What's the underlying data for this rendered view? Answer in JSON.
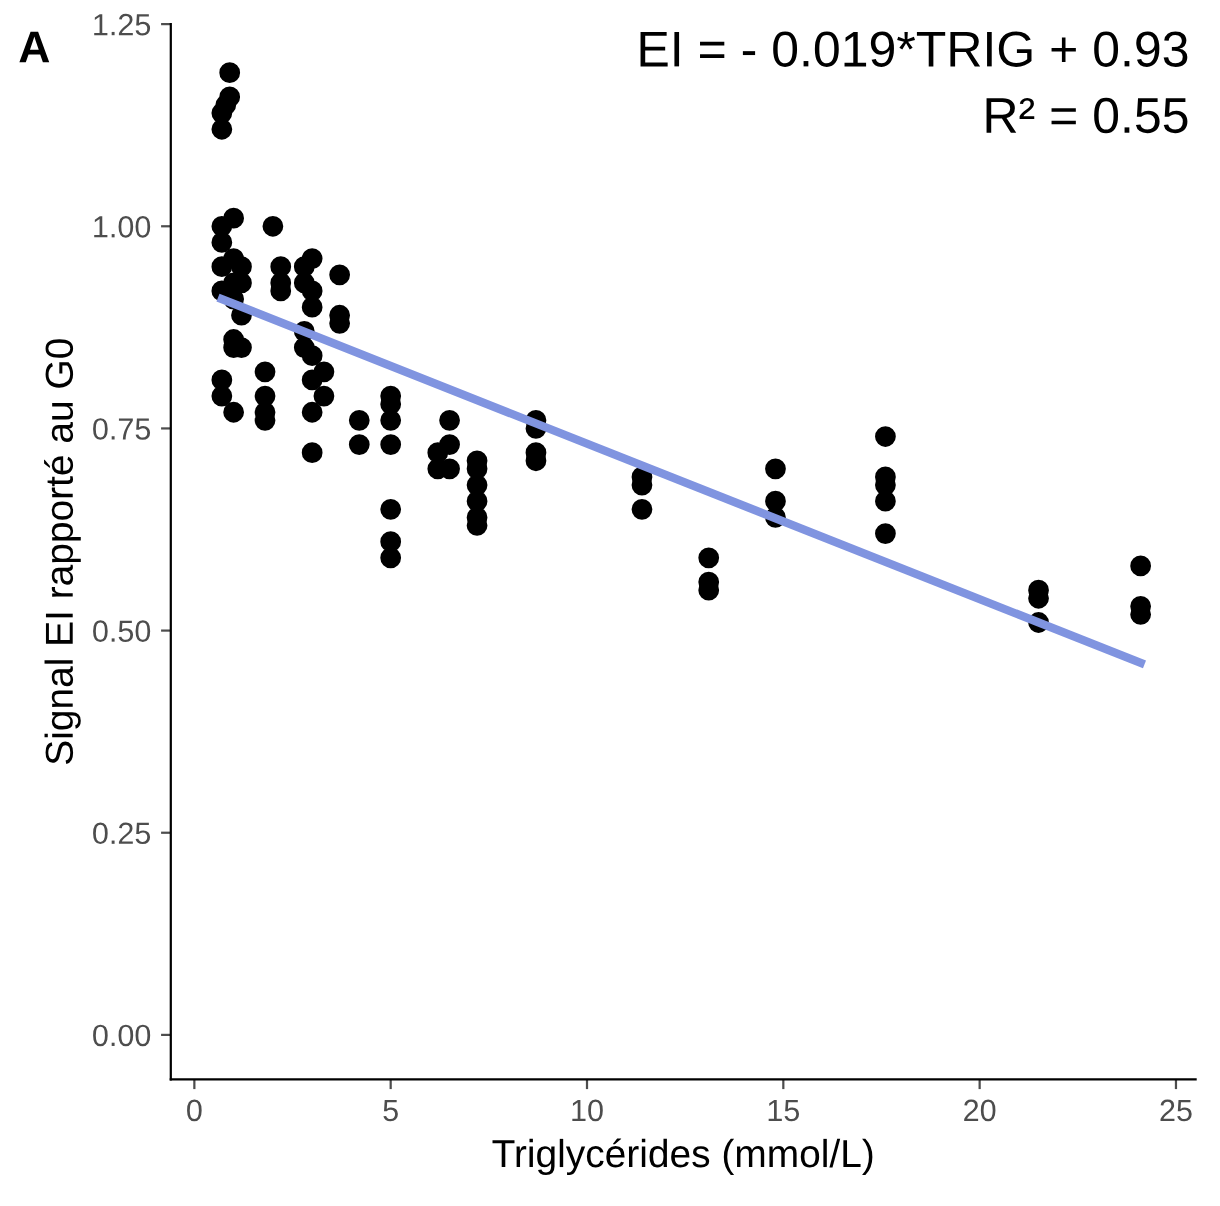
{
  "chart_data": {
    "type": "scatter",
    "xlabel": "Triglycérides (mmol/L)",
    "ylabel": "Signal EI rapporté au G0",
    "annotations": [
      "A",
      "EI = - 0.019*TRIG + 0.93",
      "R² = 0.55"
    ],
    "xlim": [
      -0.6,
      25.5
    ],
    "ylim": [
      -0.055,
      1.25
    ],
    "xticks": [
      0,
      5,
      10,
      15,
      20,
      25
    ],
    "yticks": [
      {
        "value": 0,
        "label": "0.00"
      },
      {
        "value": 0.25,
        "label": "0.25"
      },
      {
        "value": 0.5,
        "label": "0.50"
      },
      {
        "value": 0.75,
        "label": "0.75"
      },
      {
        "value": 1,
        "label": "1.00"
      },
      {
        "value": 1.25,
        "label": "1.25"
      }
    ],
    "grid": false,
    "legend": false,
    "marker": "circle",
    "series": [
      {
        "color": "#000000",
        "x": [
          0.7,
          0.7,
          0.8,
          0.9,
          0.9,
          0.7,
          0.7,
          0.7,
          0.7,
          0.7,
          0.7,
          1.0,
          1.0,
          1.0,
          1.0,
          1.0,
          1.0,
          1.0,
          1.2,
          1.2,
          1.2,
          1.2,
          1.8,
          1.8,
          1.8,
          1.8,
          2.0,
          2.2,
          2.2,
          2.2,
          2.8,
          2.8,
          2.8,
          2.8,
          3.0,
          3.0,
          3.0,
          3.0,
          3.0,
          3.0,
          3.0,
          3.3,
          3.3,
          3.7,
          3.7,
          3.7,
          4.2,
          4.2,
          5.0,
          5.0,
          5.0,
          5.0,
          5.0,
          5.0,
          5.0,
          6.2,
          6.2,
          6.5,
          6.5,
          6.5,
          7.2,
          7.2,
          7.2,
          7.2,
          7.2,
          7.2,
          8.7,
          8.7,
          8.7,
          8.7,
          11.4,
          11.4,
          11.4,
          13.1,
          13.1,
          13.1,
          14.8,
          14.8,
          14.8,
          17.6,
          17.6,
          17.6,
          17.6,
          17.6,
          21.5,
          21.5,
          21.5,
          24.1,
          24.1,
          24.1
        ],
        "values": [
          1.12,
          1.14,
          1.15,
          1.16,
          1.19,
          1.0,
          0.98,
          0.95,
          0.92,
          0.81,
          0.79,
          1.01,
          0.96,
          0.93,
          0.91,
          0.86,
          0.85,
          0.77,
          0.95,
          0.93,
          0.89,
          0.85,
          0.82,
          0.79,
          0.77,
          0.76,
          1.0,
          0.95,
          0.93,
          0.92,
          0.95,
          0.93,
          0.87,
          0.85,
          0.96,
          0.92,
          0.9,
          0.84,
          0.81,
          0.77,
          0.72,
          0.82,
          0.79,
          0.94,
          0.89,
          0.88,
          0.76,
          0.73,
          0.79,
          0.78,
          0.76,
          0.73,
          0.65,
          0.61,
          0.59,
          0.72,
          0.7,
          0.76,
          0.73,
          0.7,
          0.71,
          0.7,
          0.68,
          0.66,
          0.64,
          0.63,
          0.76,
          0.75,
          0.72,
          0.71,
          0.69,
          0.68,
          0.65,
          0.59,
          0.56,
          0.55,
          0.7,
          0.66,
          0.64,
          0.74,
          0.69,
          0.68,
          0.66,
          0.62,
          0.55,
          0.54,
          0.51,
          0.58,
          0.53,
          0.52
        ]
      },
      {
        "type": "line",
        "color": "#8094e0",
        "marker": "none",
        "line_style": "solid",
        "x": [
          0.7,
          24.1
        ],
        "values": [
          0.91,
          0.46
        ]
      }
    ]
  }
}
